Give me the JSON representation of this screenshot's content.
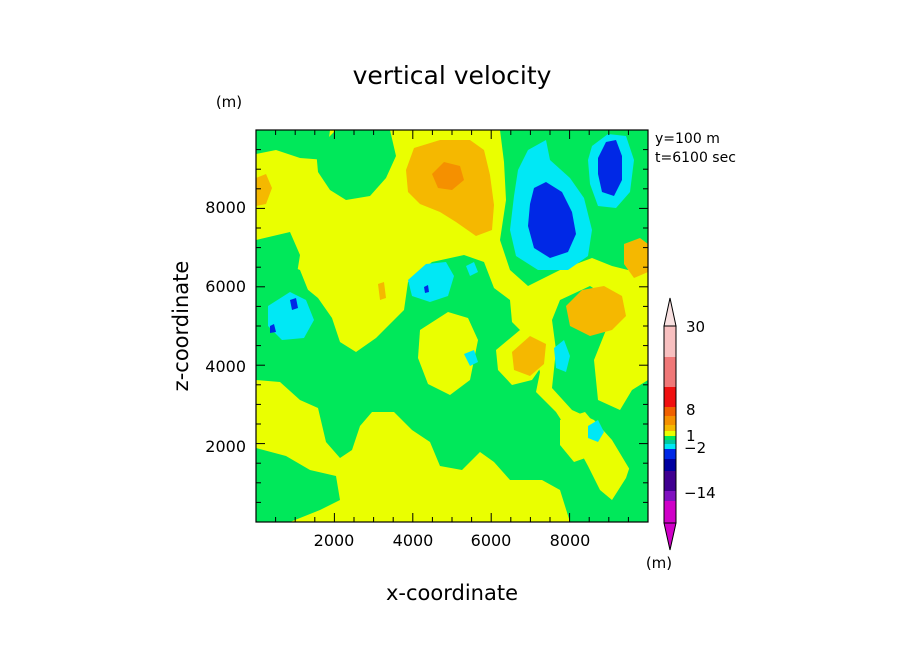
{
  "chart_data": {
    "type": "heatmap",
    "title": "vertical velocity",
    "xlabel": "x-coordinate",
    "ylabel": "z-coordinate",
    "y_unit": "(m)",
    "colorbar_unit": "(m)",
    "annotations": [
      "y=100 m",
      "t=6100 sec"
    ],
    "xlim": [
      0,
      10000
    ],
    "ylim": [
      0,
      10000
    ],
    "x_ticks": [
      2000,
      4000,
      6000,
      8000
    ],
    "y_ticks": [
      2000,
      4000,
      6000,
      8000
    ],
    "colorbar": {
      "levels": [
        -14,
        -2,
        1,
        8,
        30
      ],
      "labels": [
        "30",
        "8",
        "1",
        "−2",
        "−14"
      ]
    },
    "regions": [
      {
        "name": "large blue downdraft",
        "x": 7300,
        "z": 7300
      },
      {
        "name": "upper-right blue downdraft",
        "x": 9000,
        "z": 8800
      },
      {
        "name": "left blue spot",
        "x": 1000,
        "z": 5000
      },
      {
        "name": "central cyan patch",
        "x": 4300,
        "z": 5900
      },
      {
        "name": "upper orange updraft",
        "x": 5000,
        "z": 8700
      },
      {
        "name": "right orange updraft",
        "x": 8500,
        "z": 5000
      }
    ],
    "colors": {
      "green": "#00e85a",
      "yellow": "#eaff00",
      "orange": "#f5b800",
      "dark_orange": "#f59000",
      "cyan": "#00e8f5",
      "blue": "#0028e6",
      "navy": "#0000a0",
      "purple": "#8010c0",
      "magenta": "#d000c8",
      "red": "#f01010",
      "salmon": "#f07878",
      "pink": "#f8c0c0"
    }
  }
}
